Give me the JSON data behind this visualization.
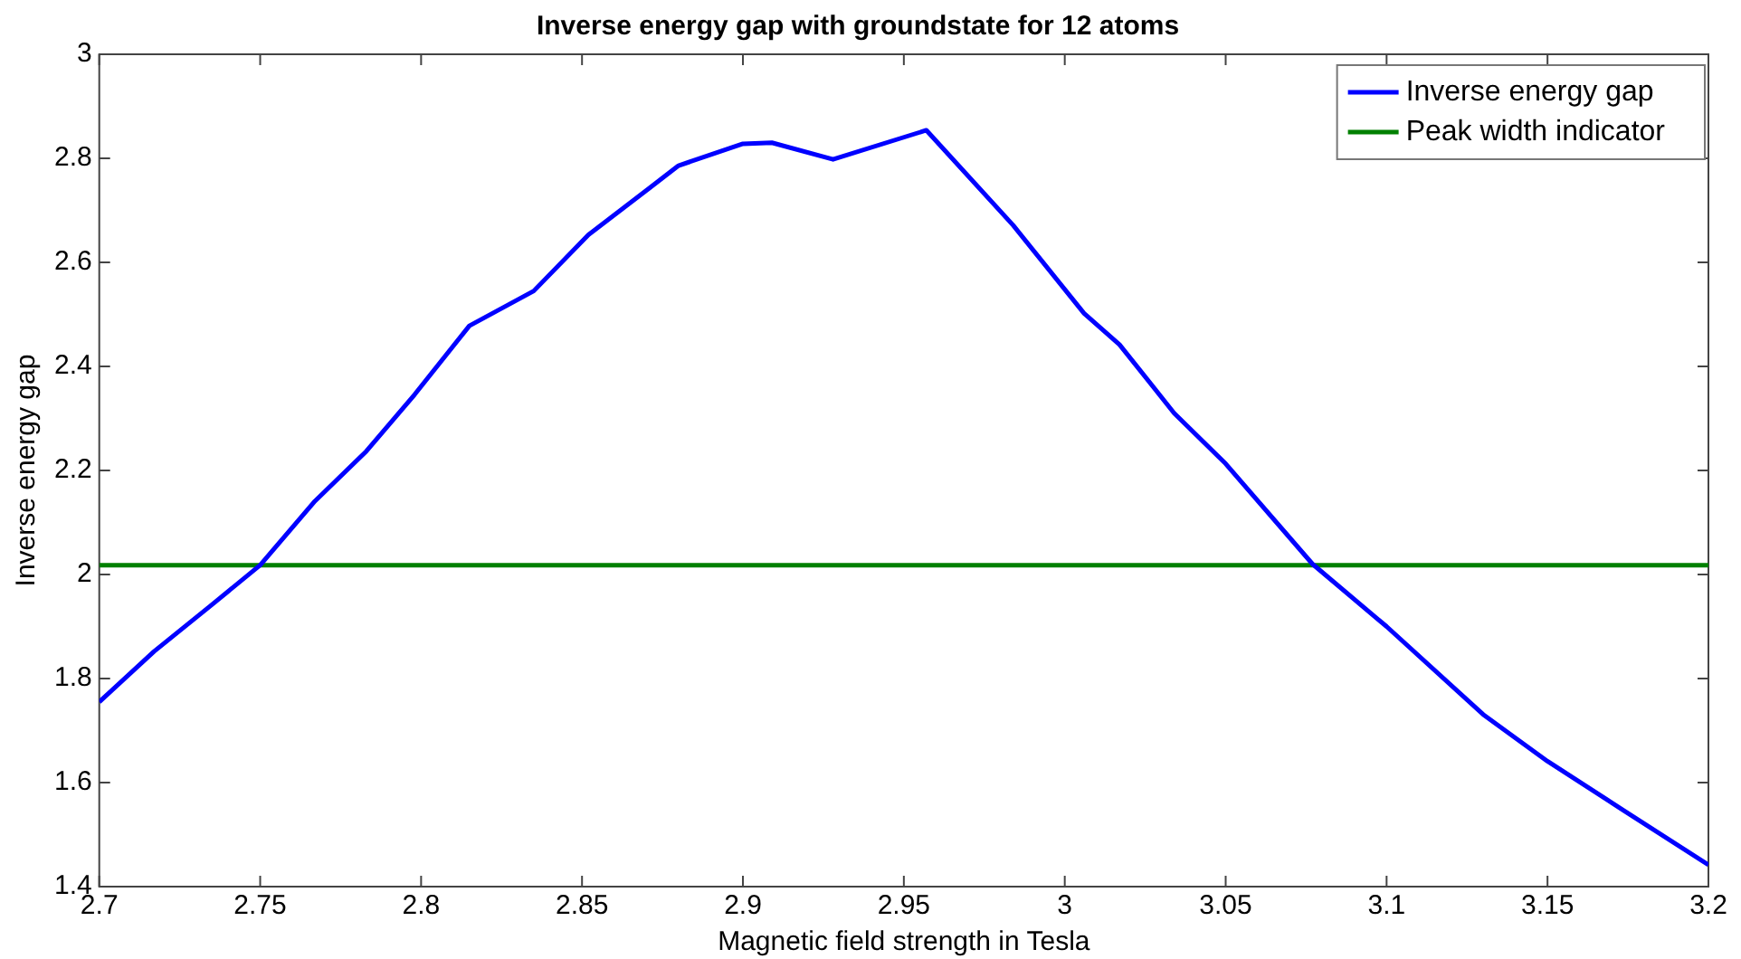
{
  "chart_data": {
    "type": "line",
    "title": "Inverse energy gap with groundstate for 12 atoms",
    "xlabel": "Magnetic field strength in Tesla",
    "ylabel": "Inverse energy gap",
    "series": [
      {
        "name": "Inverse energy gap",
        "color": "#0000ff",
        "x": [
          2.7,
          2.717,
          2.735,
          2.75,
          2.767,
          2.783,
          2.798,
          2.815,
          2.835,
          2.852,
          2.871,
          2.88,
          2.9,
          2.909,
          2.928,
          2.957,
          2.984,
          3.006,
          3.017,
          3.034,
          3.05,
          3.077,
          3.1,
          3.13,
          3.15,
          3.174,
          3.2
        ],
        "values": [
          1.755,
          1.852,
          1.942,
          2.018,
          2.141,
          2.237,
          2.346,
          2.478,
          2.545,
          2.653,
          2.743,
          2.786,
          2.828,
          2.83,
          2.798,
          2.854,
          2.671,
          2.502,
          2.442,
          2.31,
          2.213,
          2.02,
          1.9,
          1.731,
          1.641,
          1.545,
          1.442
        ]
      },
      {
        "name": "Peak width indicator",
        "color": "#008000",
        "x": [
          2.7,
          3.2
        ],
        "values": [
          2.018,
          2.018
        ]
      }
    ],
    "xlim": [
      2.7,
      3.2
    ],
    "xticks": [
      2.7,
      2.75,
      2.8,
      2.85,
      2.9,
      2.95,
      3,
      3.05,
      3.1,
      3.15,
      3.2
    ],
    "ylim": [
      1.4,
      3
    ],
    "yticks": [
      1.4,
      1.6,
      1.8,
      2,
      2.2,
      2.4,
      2.6,
      2.8,
      3
    ],
    "grid": false,
    "legend": "top right",
    "marker": "none",
    "line_style": "solid"
  }
}
